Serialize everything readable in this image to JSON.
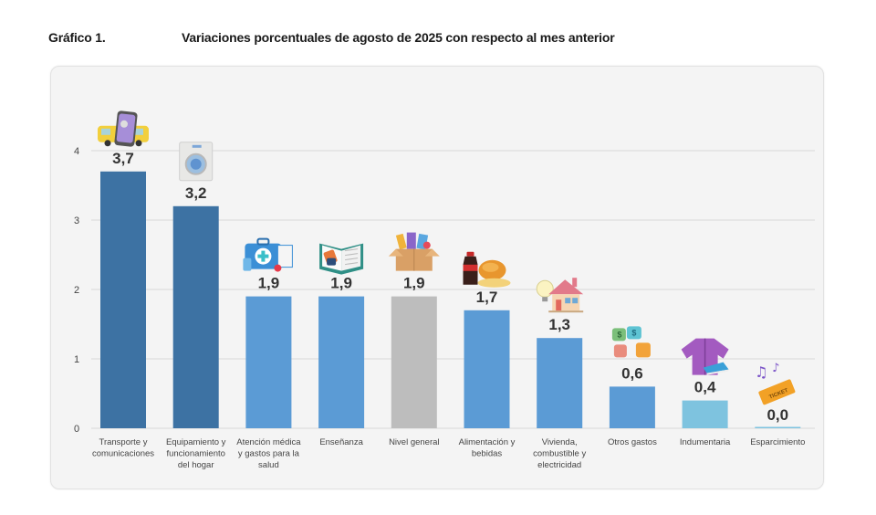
{
  "header": {
    "figure_label": "Gráfico 1.",
    "title": "Variaciones porcentuales de agosto de 2025 con respecto al mes anterior"
  },
  "chart_data": {
    "type": "bar",
    "title": "Variaciones porcentuales de agosto de 2025 con respecto al mes anterior",
    "xlabel": "",
    "ylabel": "",
    "ylim": [
      0,
      4
    ],
    "yticks": [
      0,
      1,
      2,
      3,
      4
    ],
    "grid": true,
    "legend": "none",
    "categories": [
      "Transporte y comunicaciones",
      "Equipamiento y funcionamiento del hogar",
      "Atención médica y gastos para la salud",
      "Enseñanza",
      "Nivel general",
      "Alimentación y bebidas",
      "Vivienda, combustible y electricidad",
      "Otros gastos",
      "Indumentaria",
      "Esparcimiento"
    ],
    "category_lines": [
      [
        "Transporte y",
        "comunicaciones"
      ],
      [
        "Equipamiento y",
        "funcionamiento",
        "del hogar"
      ],
      [
        "Atención médica",
        "y gastos para la",
        "salud"
      ],
      [
        "Enseñanza"
      ],
      [
        "Nivel general"
      ],
      [
        "Alimentación y",
        "bebidas"
      ],
      [
        "Vivienda,",
        "combustible y",
        "electricidad"
      ],
      [
        "Otros gastos"
      ],
      [
        "Indumentaria"
      ],
      [
        "Esparcimiento"
      ]
    ],
    "values": [
      3.7,
      3.2,
      1.9,
      1.9,
      1.9,
      1.7,
      1.3,
      0.6,
      0.4,
      0.0
    ],
    "value_labels": [
      "3,7",
      "3,2",
      "1,9",
      "1,9",
      "1,9",
      "1,7",
      "1,3",
      "0,6",
      "0,4",
      "0,0"
    ],
    "bar_colors": [
      "#3d72a3",
      "#3d72a3",
      "#5b9bd5",
      "#5b9bd5",
      "#bdbdbd",
      "#5b9bd5",
      "#5b9bd5",
      "#5b9bd5",
      "#7ec3df",
      "#7ec3df"
    ],
    "icons": [
      "bus-phone-icon",
      "washing-machine-icon",
      "medical-kit-icon",
      "open-book-icon",
      "shopping-box-icon",
      "soda-chicken-bread-icon",
      "house-bulb-icon",
      "puzzle-money-icon",
      "jacket-sneaker-icon",
      "music-ticket-icon"
    ]
  },
  "colors": {
    "grid": "#d9d9d9",
    "card_background": "#f4f4f4",
    "value_text": "#333333"
  }
}
